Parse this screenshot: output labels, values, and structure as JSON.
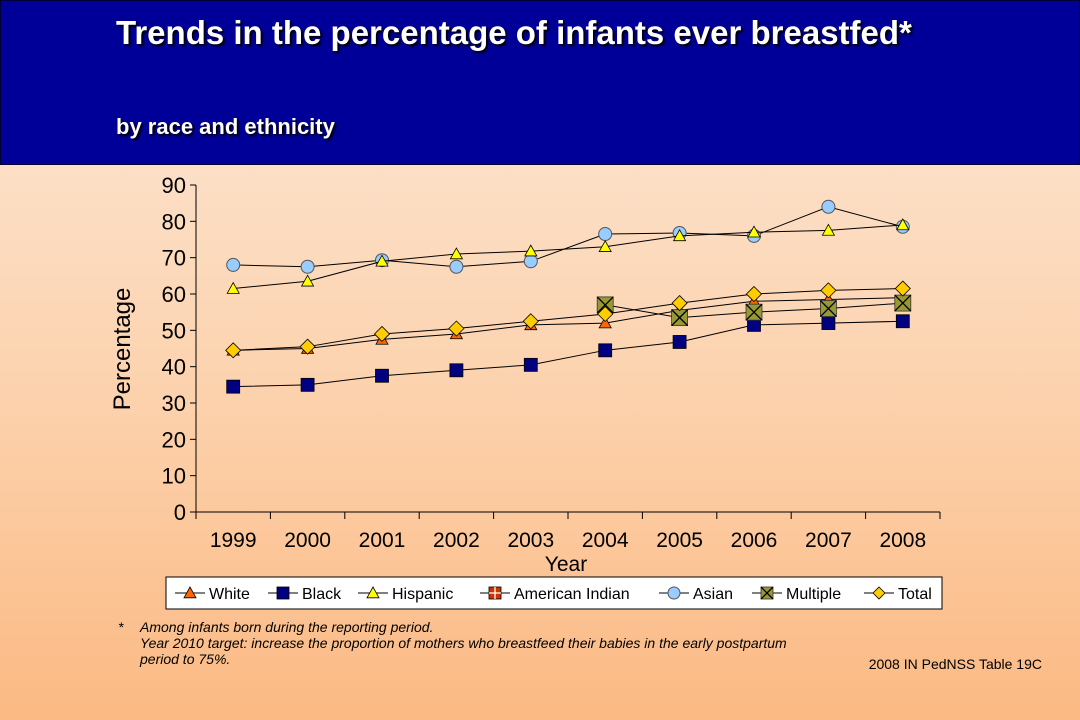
{
  "header": {
    "title": "Trends in the percentage of infants ever breastfed*",
    "subtitle": "by race and ethnicity"
  },
  "footnote": {
    "marker": "*",
    "lines": [
      "Among infants born during the reporting period.",
      "Year 2010 target: increase the proportion of mothers who breastfeed their babies in the early postpartum",
      "period to 75%."
    ]
  },
  "source": "2008 IN PedNSS Table 19C",
  "chart_data": {
    "type": "line",
    "title": "",
    "xlabel": "Year",
    "ylabel": "Percentage",
    "ylim": [
      0,
      90
    ],
    "yticks": [
      0,
      10,
      20,
      30,
      40,
      50,
      60,
      70,
      80,
      90
    ],
    "categories": [
      "1999",
      "2000",
      "2001",
      "2002",
      "2003",
      "2004",
      "2005",
      "2006",
      "2007",
      "2008"
    ],
    "grid": false,
    "legend_position": "bottom",
    "series": [
      {
        "name": "White",
        "marker": "triangle",
        "color": "#ff6600",
        "values": [
          44.5,
          45.0,
          47.5,
          49.0,
          51.5,
          52.0,
          55.5,
          58.0,
          58.5,
          59.0
        ]
      },
      {
        "name": "Black",
        "marker": "square",
        "color": "#000080",
        "values": [
          34.5,
          35.0,
          37.5,
          39.0,
          40.5,
          44.5,
          46.8,
          51.5,
          52.0,
          52.5
        ]
      },
      {
        "name": "Hispanic",
        "marker": "triangle",
        "color": "#ffff00",
        "values": [
          61.5,
          63.5,
          69.0,
          71.0,
          71.8,
          73.0,
          76.0,
          77.0,
          77.5,
          79.0
        ]
      },
      {
        "name": "American Indian",
        "marker": "square-cross",
        "color": "#cc3300",
        "values": [
          null,
          null,
          null,
          null,
          null,
          null,
          null,
          null,
          null,
          null
        ]
      },
      {
        "name": "Asian",
        "marker": "circle",
        "color": "#99ccff",
        "values": [
          68.0,
          67.5,
          69.3,
          67.5,
          69.0,
          76.5,
          76.8,
          76.0,
          84.0,
          78.5
        ]
      },
      {
        "name": "Multiple",
        "marker": "square-x",
        "color": "#999933",
        "values": [
          null,
          null,
          null,
          null,
          null,
          57.0,
          53.5,
          55.0,
          56.0,
          57.5
        ]
      },
      {
        "name": "Total",
        "marker": "diamond",
        "color": "#ffcc00",
        "values": [
          44.5,
          45.5,
          49.0,
          50.5,
          52.5,
          54.5,
          57.5,
          60.0,
          61.0,
          61.5
        ]
      }
    ]
  }
}
